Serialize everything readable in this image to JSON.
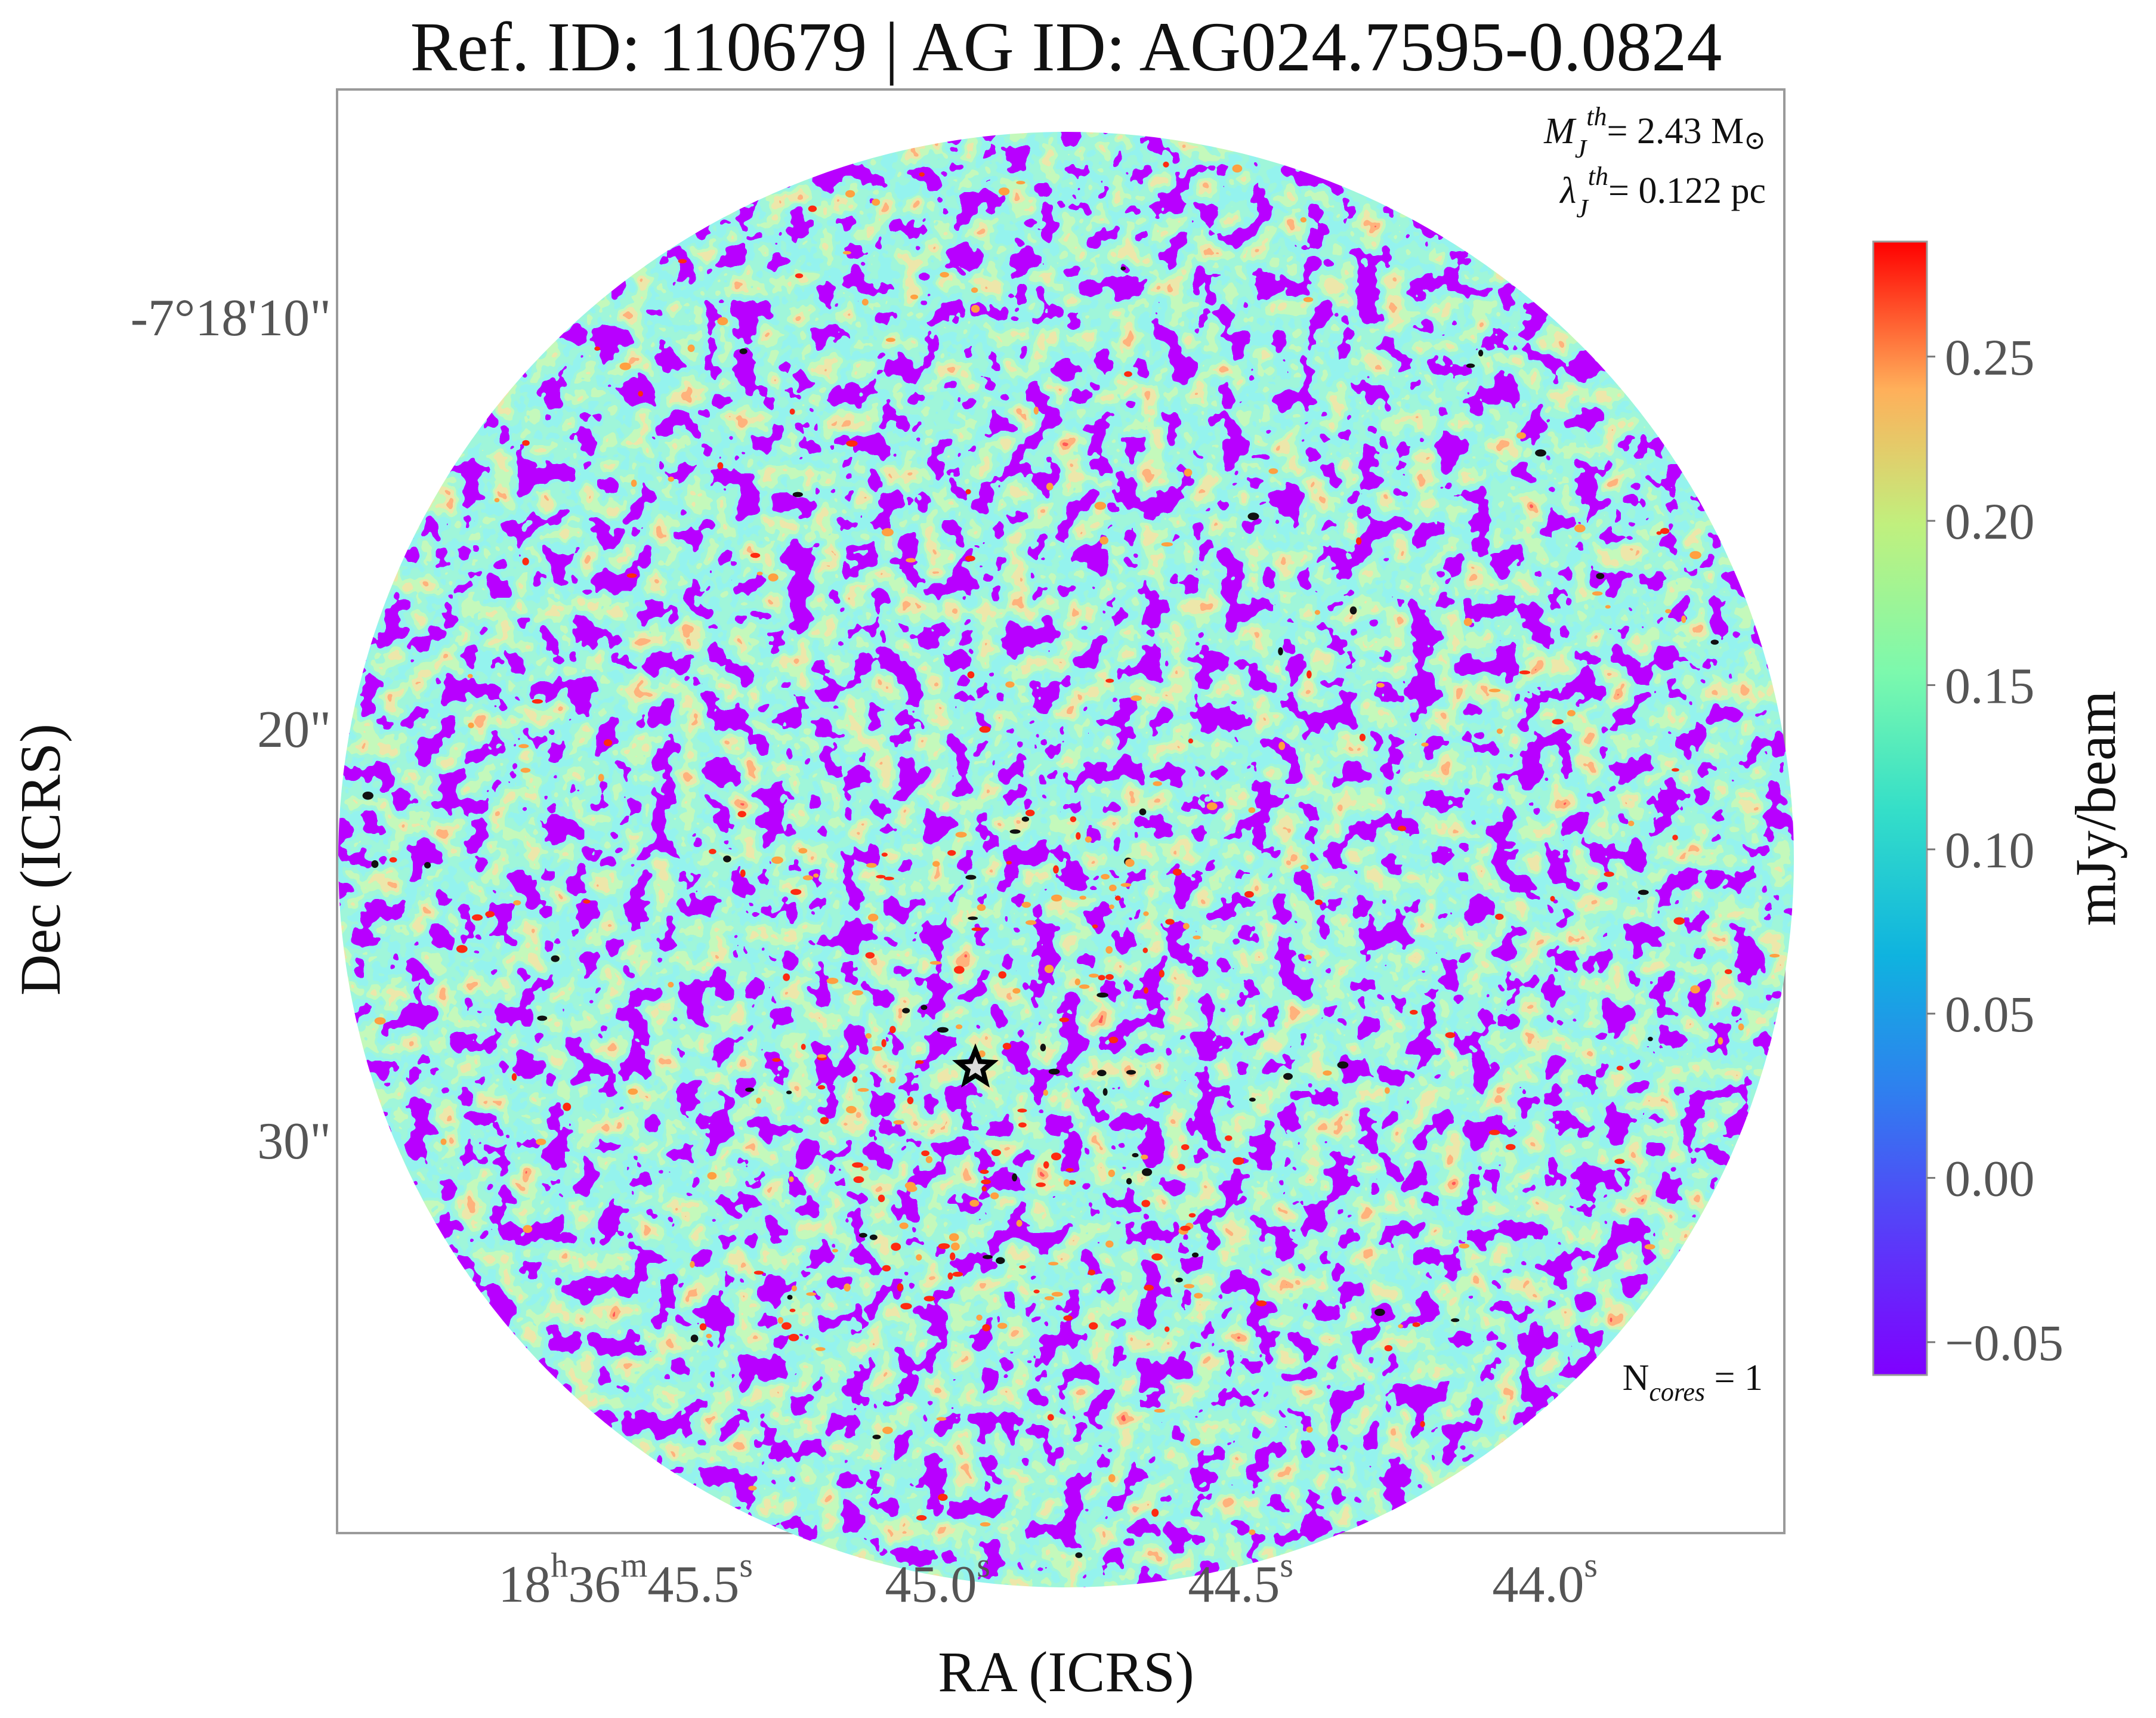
{
  "chart_data": {
    "type": "heatmap",
    "title": "Ref. ID: 110679 | AG ID: AG024.7595-0.0824",
    "xlabel": "RA (ICRS)",
    "ylabel": "Dec (ICRS)",
    "x_ticks": [
      {
        "h": "18",
        "m": "36",
        "s": "45.5",
        "value": "18h36m45.5s"
      },
      {
        "s": "45.0",
        "value": "45.0s"
      },
      {
        "s": "44.5",
        "value": "44.5s"
      },
      {
        "s": "44.0",
        "value": "44.0s"
      }
    ],
    "y_ticks": [
      "-7°18'10\"",
      "20\"",
      "30\""
    ],
    "colorbar": {
      "label": "mJy/beam",
      "colormap": "rainbow",
      "range": [
        -0.06,
        0.285
      ],
      "ticks": [
        "0.25",
        "0.20",
        "0.15",
        "0.10",
        "0.05",
        "0.00",
        "−0.05"
      ],
      "tick_values": [
        0.25,
        0.2,
        0.15,
        0.1,
        0.05,
        0.0,
        -0.05
      ]
    },
    "annotations": {
      "jeans_mass_symbol": "M",
      "jeans_mass_sub": "J",
      "jeans_mass_sup": "th",
      "jeans_mass_value": "= 2.43 M",
      "jeans_mass_unit_symbol": "⊙",
      "jeans_length_symbol": "λ",
      "jeans_length_sub": "J",
      "jeans_length_sup": "th",
      "jeans_length_value": "= 0.122 pc",
      "ncores_prefix": "N",
      "ncores_sub": "cores",
      "ncores_value": " = 1"
    },
    "marker": {
      "type": "star",
      "color": "#d8d8d8",
      "edge": "#000000",
      "ra": "18h36m45.0s",
      "dec": "-7°18'28\""
    },
    "field": {
      "shape": "circle",
      "dominant_color": "#7a00ff",
      "secondary_color": "#4de7d8"
    }
  }
}
